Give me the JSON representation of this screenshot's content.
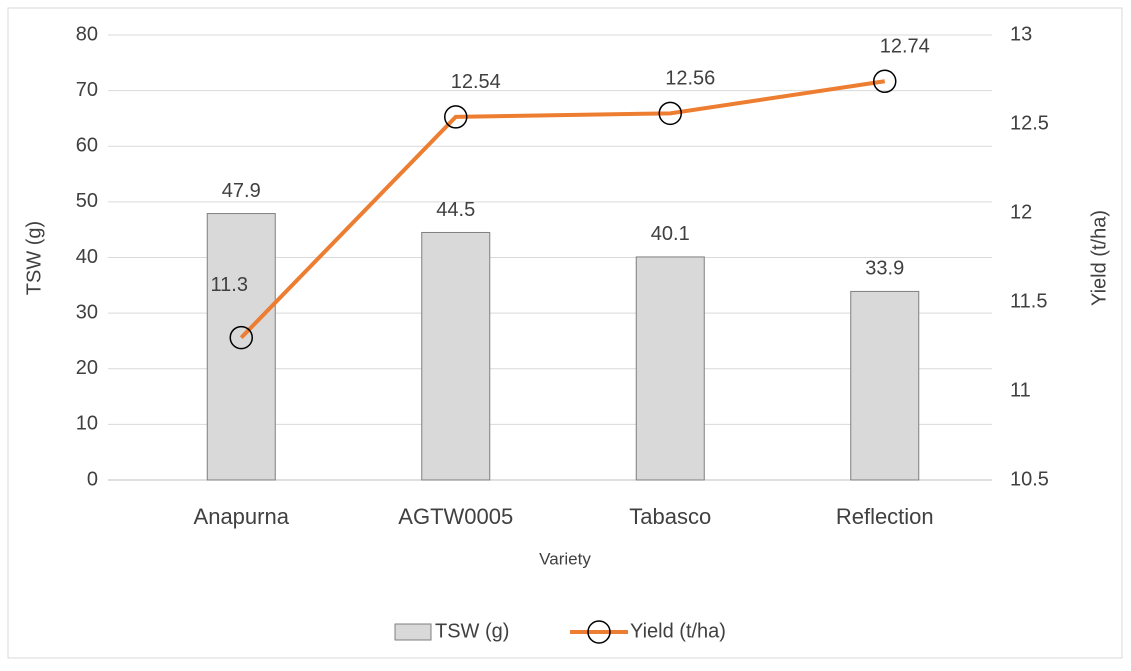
{
  "chart_data": {
    "type": "combo",
    "x_label": "Variety",
    "y_label": "TSW  (g)",
    "y2_label": "Yield (t/ha)",
    "categories": [
      "Anapurna",
      "AGTW0005",
      "Tabasco",
      "Reflection"
    ],
    "series": [
      {
        "name": "TSW (g)",
        "type": "bar",
        "color": "#d9d9d9",
        "values": [
          47.9,
          44.5,
          40.1,
          33.9
        ]
      },
      {
        "name": "Yield (t/ha)",
        "type": "line",
        "color": "#ed7d31",
        "axis": "y2",
        "values": [
          11.3,
          12.54,
          12.56,
          12.74
        ]
      }
    ],
    "ylim": [
      0,
      80
    ],
    "yticks": [
      0,
      10,
      20,
      30,
      40,
      50,
      60,
      70,
      80
    ],
    "y2lim": [
      10.5,
      13
    ],
    "y2ticks": [
      10.5,
      11,
      11.5,
      12,
      12.5,
      13
    ],
    "grid": true,
    "legend": "bottom"
  }
}
